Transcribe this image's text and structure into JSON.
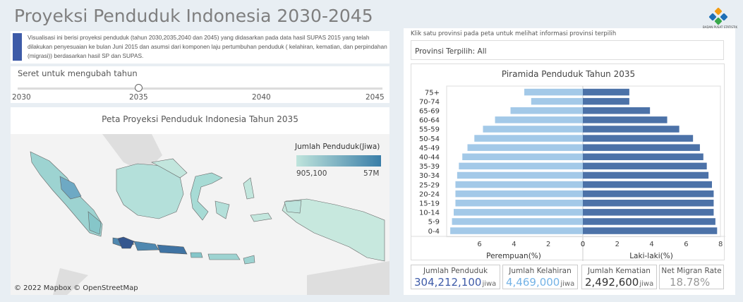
{
  "title": "Proyeksi Penduduk Indonesia 2030-2045",
  "logo_caption": "BADAN PUSAT STATISTIK",
  "description": "Visualisasi ini berisi proyeksi penduduk  (tahun 2030,2035,2040  dan 2045) yang didasarkan pada data hasil SUPAS 2015 yang telah dilakukan penyesuaian ke bulan Juni 2015 dan asumsi  dari komponen laju pertumbuhan penduduk ( kelahiran, kematian, dan perpindahan (migrasi)) berdasarkan hasil SP dan SUPAS.",
  "slider": {
    "label": "Seret untuk mengubah tahun",
    "ticks": [
      "2030",
      "2035",
      "2040",
      "2045"
    ],
    "value": "2035"
  },
  "map": {
    "title": "Peta Proyeksi Penduduk Indonesia Tahun 2035",
    "legend_title": "Jumlah Penduduk(Jiwa)",
    "legend_min": "905,100",
    "legend_max": "57M",
    "attribution": "© 2022 Mapbox  © OpenStreetMap",
    "colors": {
      "low": "#bfe4dc",
      "mid": "#86c6c9",
      "high": "#3a7ea8",
      "max": "#34568e"
    }
  },
  "click_hint": "Klik satu provinsi pada peta untuk melihat informasi provinsi  terpilih",
  "province_selected": "Provinsi Terpilih: All",
  "chart_data": {
    "type": "bar",
    "title": "Piramida Penduduk Tahun 2035",
    "categories": [
      "75+",
      "70-74",
      "65-69",
      "60-64",
      "55-59",
      "50-54",
      "45-49",
      "40-44",
      "35-39",
      "30-34",
      "25-29",
      "20-24",
      "15-19",
      "10-14",
      "5-9",
      "0-4"
    ],
    "series": [
      {
        "name": "Perempuan(%)",
        "color": "#a3c9e8",
        "values": [
          3.4,
          3.0,
          4.2,
          5.1,
          5.8,
          6.3,
          6.7,
          7.0,
          7.2,
          7.3,
          7.4,
          7.4,
          7.4,
          7.5,
          7.6,
          7.7
        ]
      },
      {
        "name": "Laki-laki(%)",
        "color": "#4c72a8",
        "values": [
          2.7,
          2.7,
          3.9,
          4.9,
          5.6,
          6.4,
          6.8,
          7.0,
          7.2,
          7.3,
          7.5,
          7.6,
          7.6,
          7.6,
          7.7,
          7.8
        ]
      }
    ],
    "x_ticks_left": [
      "6",
      "4",
      "2",
      "0"
    ],
    "x_ticks_right": [
      "0",
      "2",
      "4",
      "6",
      "8"
    ],
    "xlim": [
      0,
      8
    ],
    "xlabel_left": "Perempuan(%)",
    "xlabel_right": "Laki-laki(%)"
  },
  "stats": [
    {
      "label": "Jumlah Penduduk",
      "value": "304,212,100",
      "unit": "jiwa",
      "color": "#3e5ba8"
    },
    {
      "label": "Jumlah Kelahiran",
      "value": "4,469,000",
      "unit": "jiwa",
      "color": "#74b3e6"
    },
    {
      "label": "Jumlah Kematian",
      "value": "2,492,600",
      "unit": "jiwa",
      "color": "#333333"
    },
    {
      "label": "Net Migran Rate",
      "value": "18.78%",
      "unit": "",
      "color": "#999999"
    }
  ]
}
